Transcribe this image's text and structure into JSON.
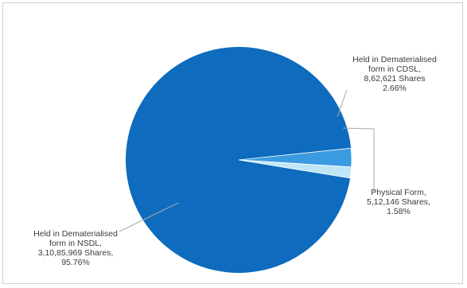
{
  "chart_data": {
    "type": "pie",
    "title": "",
    "slices": [
      {
        "label_lines": [
          "Held in Dematerialised",
          "form in NSDL,",
          "3,10,85,969 Shares,",
          "95.76%"
        ],
        "value": 95.76,
        "color": "#0e6bbd"
      },
      {
        "label_lines": [
          "Held in Dematerialised",
          "form in CDSL,",
          "8,62,621 Shares",
          "2.66%"
        ],
        "value": 2.66,
        "color": "#3a9be0"
      },
      {
        "label_lines": [
          "Physical Form,",
          "5,12,146 Shares,",
          "1.58%"
        ],
        "value": 1.58,
        "color": "#bfe6f7"
      }
    ],
    "legend": "none"
  }
}
